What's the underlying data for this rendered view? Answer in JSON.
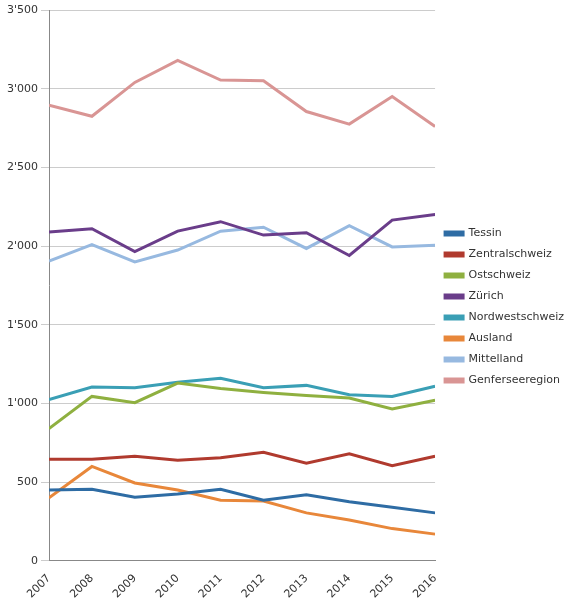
{
  "chart_data": {
    "type": "line",
    "categories": [
      "2007",
      "2008",
      "2009",
      "2010",
      "2011",
      "2012",
      "2013",
      "2014",
      "2015",
      "2016"
    ],
    "series": [
      {
        "name": "Tessin",
        "color": "#2e6ca4",
        "values": [
          450,
          455,
          405,
          425,
          455,
          385,
          420,
          375,
          340,
          305
        ]
      },
      {
        "name": "Zentralschweiz",
        "color": "#b03a2e",
        "values": [
          645,
          645,
          665,
          640,
          655,
          690,
          620,
          680,
          605,
          665
        ]
      },
      {
        "name": "Ostschweiz",
        "color": "#8fb040",
        "values": [
          840,
          1045,
          1005,
          1130,
          1095,
          1070,
          1050,
          1035,
          965,
          1020
        ]
      },
      {
        "name": "Zürich",
        "color": "#6a3d8a",
        "values": [
          2090,
          2110,
          1965,
          2095,
          2155,
          2070,
          2085,
          1940,
          2165,
          2200
        ]
      },
      {
        "name": "Nordwestschweiz",
        "color": "#3a9fb5",
        "values": [
          1025,
          1105,
          1100,
          1135,
          1160,
          1100,
          1115,
          1055,
          1045,
          1110
        ]
      },
      {
        "name": "Ausland",
        "color": "#e8873a",
        "values": [
          400,
          600,
          495,
          450,
          385,
          380,
          305,
          260,
          205,
          170
        ]
      },
      {
        "name": "Mittelland",
        "color": "#97b9e0",
        "values": [
          1905,
          2010,
          1900,
          1975,
          2095,
          2120,
          1985,
          2130,
          1995,
          2005
        ]
      },
      {
        "name": "Genferseeregion",
        "color": "#d99594",
        "values": [
          2895,
          2825,
          3040,
          3180,
          3055,
          3050,
          2855,
          2775,
          2950,
          2760
        ]
      }
    ],
    "ylim": [
      0,
      3500
    ],
    "yticks": [
      0,
      500,
      {
        "value": 1000,
        "label": "1'000"
      },
      {
        "value": 1500,
        "label": "1'500"
      },
      {
        "value": 2000,
        "label": "2'000"
      },
      {
        "value": 2500,
        "label": "2'500"
      },
      {
        "value": 3000,
        "label": "3'000"
      },
      {
        "value": 3500,
        "label": "3'500"
      }
    ],
    "grid": true,
    "legend": "right"
  }
}
